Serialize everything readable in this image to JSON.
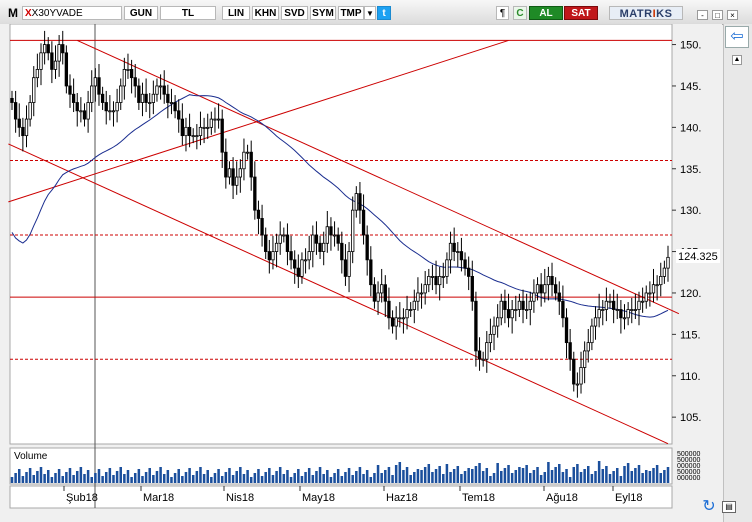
{
  "toolbar": {
    "logo": "M",
    "symbol_prefix": "X",
    "symbol": "X30YVADE",
    "period_label": "GUN",
    "currency_label": "TL",
    "scale_label": "LIN",
    "btn_khn": "KHN",
    "btn_svd": "SVD",
    "btn_sym": "SYM",
    "btn_tmp": "TMP",
    "dropdown_glyph": "▼",
    "twitter_glyph": "t",
    "notes_glyph": "¶",
    "refresh_glyph": "C",
    "buy_label": "AL",
    "sell_label": "SAT",
    "brand": "MATRIKS",
    "win_min": "-",
    "win_max": "□",
    "win_close": "×"
  },
  "side": {
    "back_glyph": "⇦",
    "scroll_glyph": "▲"
  },
  "status": {
    "refresh_glyph": "↻",
    "props_glyph": "▤"
  },
  "chart_data": {
    "type": "candlestick",
    "symbol": "X30YVADE",
    "last_price_label": "124.325",
    "last_price": 124.325,
    "y_axis_ticks": [
      150,
      145,
      140,
      135,
      130,
      125,
      120,
      115,
      110,
      105
    ],
    "y_axis_tick_labels": [
      "150.",
      "145.",
      "140.",
      "135.",
      "130.",
      "125.",
      "120.",
      "115.",
      "110.",
      "105."
    ],
    "ylim": [
      102,
      152
    ],
    "x_axis_labels": [
      "Şub18",
      "Mar18",
      "Nis18",
      "May18",
      "Haz18",
      "Tem18",
      "Ağu18",
      "Eyl18"
    ],
    "volume_label": "Volume",
    "volume_axis_labels": [
      "500000",
      "500000",
      "000000",
      "500000",
      "000000"
    ],
    "moving_average_color": "#1a2d8f",
    "candle_color": "#000000",
    "trendline_color": "#cc0000",
    "horizontal_levels": [
      150.5,
      136,
      127,
      119.5,
      112
    ],
    "closes": [
      143,
      141,
      140,
      139,
      141,
      143,
      146,
      147,
      149,
      150,
      149,
      147,
      148,
      150,
      149,
      145,
      144,
      143,
      142,
      142,
      141,
      143,
      145,
      146,
      144,
      143,
      142,
      142,
      142,
      143,
      145,
      147,
      147,
      146,
      145,
      143,
      144,
      143,
      143,
      144,
      145,
      145,
      144,
      143,
      143,
      142,
      141,
      139,
      140,
      139,
      139,
      139,
      140,
      140,
      140,
      141,
      141,
      141,
      137,
      134,
      135,
      133,
      134,
      135,
      137,
      137,
      134,
      130,
      129,
      127,
      125,
      124,
      125,
      126,
      127,
      127,
      125,
      124,
      123,
      122,
      124,
      124,
      125,
      127,
      126,
      125,
      126,
      128,
      127,
      127,
      126,
      124,
      122,
      125,
      130,
      132,
      130,
      127,
      124,
      121,
      119,
      120,
      121,
      119,
      117,
      116,
      117,
      117,
      117,
      118,
      118,
      119,
      120,
      120,
      121,
      122,
      122,
      121,
      122,
      122,
      124,
      126,
      125,
      125,
      124,
      123,
      122,
      119,
      113,
      112,
      112,
      114,
      115,
      116,
      117,
      119,
      118,
      117,
      118,
      118,
      119,
      118,
      118,
      119,
      120,
      121,
      120,
      121,
      122,
      121,
      120,
      119,
      117,
      114,
      112,
      109,
      109,
      111,
      113,
      114,
      116,
      117,
      118,
      118,
      119,
      119,
      118,
      118,
      117,
      117,
      118,
      118,
      118,
      119,
      119,
      120,
      120,
      121,
      121,
      122,
      123,
      124.3
    ]
  }
}
